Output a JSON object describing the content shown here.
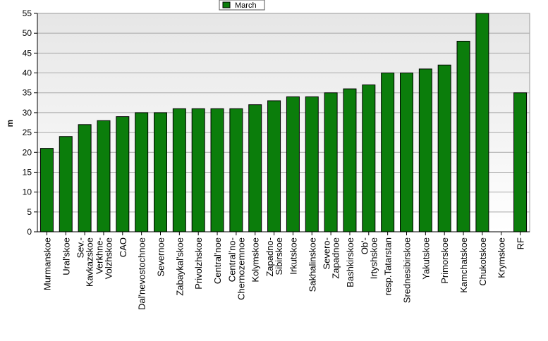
{
  "chart_data": {
    "type": "bar",
    "ylabel": "m",
    "ylim": [
      0,
      55
    ],
    "yticks": [
      0,
      5,
      10,
      15,
      20,
      25,
      30,
      35,
      40,
      45,
      50,
      55
    ],
    "grid": true,
    "legend_position": "top-center",
    "categories": [
      "Murmanskoe",
      "Ural'skoe",
      "Sev.-Kavkazskoe",
      "Verkhne-Volzhskoe",
      "CAO",
      "Dal'nevostochnoe",
      "Severnoe",
      "Zabaykal'skoe",
      "Privolzhskoe",
      "Central'noe",
      "Central'no-Chernozemnoe",
      "Kolymskoe",
      "Zapadno-Sibirskoe",
      "Irkutskoe",
      "Sakhalinskoe",
      "Severo-Zapadnoe",
      "Bashkirskoe",
      "Ob'-Irtyshskoe",
      "resp.Tatarstan",
      "Srednesibirskoe",
      "Yakutskoe",
      "Primorskoe",
      "Kamchatskoe",
      "Chukotskoe",
      "Krymskoe",
      "RF"
    ],
    "tick_labels": [
      [
        "Murmanskoe"
      ],
      [
        "Ural'skoe"
      ],
      [
        "Sev.-",
        "Kavkazskoe"
      ],
      [
        "Verkhne-",
        "Volzhskoe"
      ],
      [
        "CAO"
      ],
      [
        "Dal'nevostochnoe"
      ],
      [
        "Severnoe"
      ],
      [
        "Zabaykal'skoe"
      ],
      [
        "Privolzhskoe"
      ],
      [
        "Central'noe"
      ],
      [
        "Central'no-",
        "Chernozemnoe"
      ],
      [
        "Kolymskoe"
      ],
      [
        "Zapadno-",
        "Sibirskoe"
      ],
      [
        "Irkutskoe"
      ],
      [
        "Sakhalinskoe"
      ],
      [
        "Severo-",
        "Zapadnoe"
      ],
      [
        "Bashkirskoe"
      ],
      [
        "Ob'-",
        "Irtyshskoe"
      ],
      [
        "resp.Tatarstan"
      ],
      [
        "Srednesibirskoe"
      ],
      [
        "Yakutskoe"
      ],
      [
        "Primorskoe"
      ],
      [
        "Kamchatskoe"
      ],
      [
        "Chukotskoe"
      ],
      [
        "Krymskoe"
      ],
      [
        "RF"
      ]
    ],
    "series": [
      {
        "name": "March",
        "color": "#0b7d0b",
        "values": [
          21,
          24,
          27,
          28,
          29,
          30,
          30,
          31,
          31,
          31,
          31,
          32,
          33,
          34,
          34,
          35,
          36,
          37,
          40,
          40,
          41,
          42,
          48,
          55,
          null,
          35
        ]
      }
    ]
  }
}
